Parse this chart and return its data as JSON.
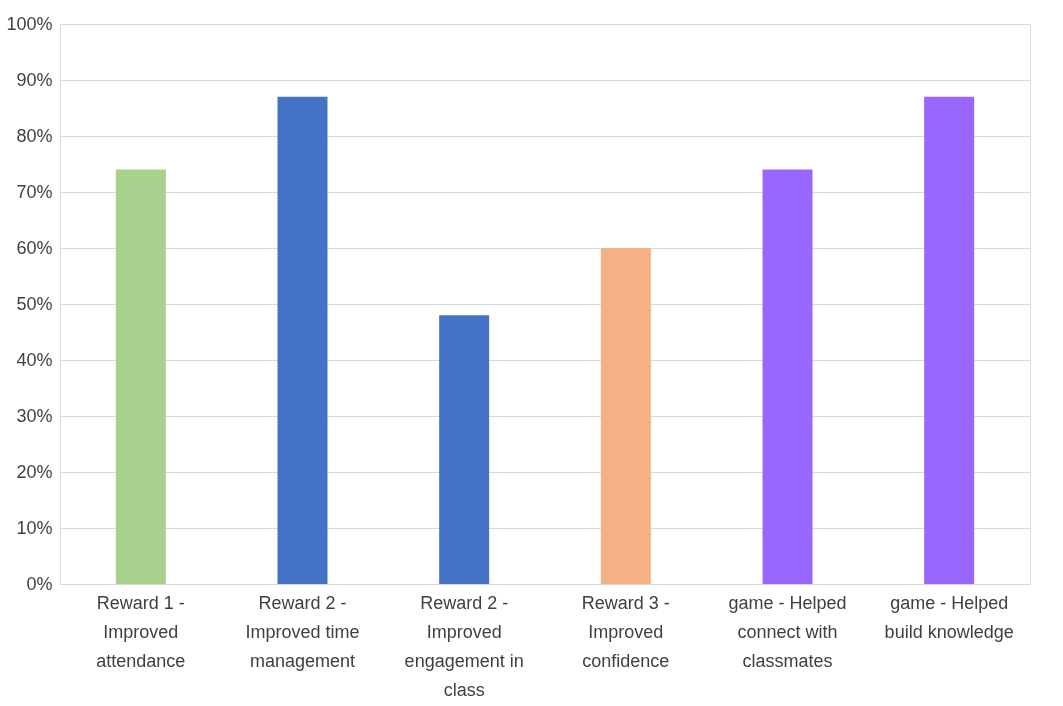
{
  "chart_data": {
    "type": "bar",
    "categories": [
      "Reward 1 - Improved attendance",
      "Reward 2 - Improved time management",
      "Reward 2 - Improved engagement in class",
      "Reward 3 - Improved confidence",
      "game - Helped connect with classmates",
      "game - Helped build knowledge"
    ],
    "values": [
      74,
      87,
      48,
      60,
      74,
      87
    ],
    "colors": [
      "#a9d18e",
      "#4472c4",
      "#4472c4",
      "#f4b183",
      "#9966ff",
      "#9966ff"
    ],
    "ylim": [
      0,
      100
    ],
    "yticks": [
      {
        "value": 0,
        "label": "0%"
      },
      {
        "value": 10,
        "label": "10%"
      },
      {
        "value": 20,
        "label": "20%"
      },
      {
        "value": 30,
        "label": "30%"
      },
      {
        "value": 40,
        "label": "40%"
      },
      {
        "value": 50,
        "label": "50%"
      },
      {
        "value": 60,
        "label": "60%"
      },
      {
        "value": 70,
        "label": "70%"
      },
      {
        "value": 80,
        "label": "80%"
      },
      {
        "value": 90,
        "label": "90%"
      },
      {
        "value": 100,
        "label": "100%"
      }
    ],
    "grid": "y"
  }
}
